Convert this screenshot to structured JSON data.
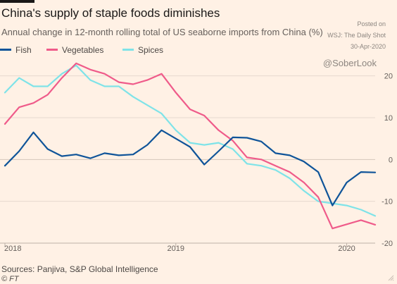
{
  "title": "China's supply of staple foods diminishes",
  "subtitle": "Annual change in 12-month rolling total of US seaborne imports from China (%)",
  "credit": {
    "line1": "Posted on",
    "line2": "WSJ: The Daily Shot",
    "line3": "30-Apr-2020"
  },
  "watermark": "@SoberLook",
  "source": "Sources: Panjiva, S&P Global Intelligence",
  "copyright": "© FT",
  "colors": {
    "background": "#fff1e5",
    "fish": "#0f5499",
    "vegetables": "#ef5b8a",
    "spices": "#7fe3e8",
    "grid": "#e6d9ce"
  },
  "chart_data": {
    "type": "line",
    "x": [
      "2018-01",
      "2018-02",
      "2018-03",
      "2018-04",
      "2018-05",
      "2018-06",
      "2018-07",
      "2018-08",
      "2018-09",
      "2018-10",
      "2018-11",
      "2018-12",
      "2019-01",
      "2019-02",
      "2019-03",
      "2019-04",
      "2019-05",
      "2019-06",
      "2019-07",
      "2019-08",
      "2019-09",
      "2019-10",
      "2019-11",
      "2019-12",
      "2020-01",
      "2020-02",
      "2020-03"
    ],
    "series": [
      {
        "name": "Fish",
        "color": "#0f5499",
        "values": [
          -1.5,
          2,
          6.5,
          2.5,
          0.8,
          1.2,
          0.3,
          1.5,
          1,
          1.2,
          3.5,
          7,
          5,
          3,
          -1.2,
          2,
          5.3,
          5.2,
          4.3,
          1.5,
          1,
          -0.5,
          -3,
          -11,
          -5.5,
          -3,
          -3.1
        ]
      },
      {
        "name": "Vegetables",
        "color": "#ef5b8a",
        "values": [
          8.5,
          12.5,
          13.5,
          15.5,
          19.5,
          23,
          21.5,
          20.5,
          18.5,
          18,
          19,
          20.5,
          16,
          12,
          10.5,
          7,
          4.5,
          0.5,
          0,
          -1.5,
          -3,
          -5.5,
          -9,
          -16.5,
          -15.5,
          -14.5,
          -15.6
        ]
      },
      {
        "name": "Spices",
        "color": "#7fe3e8",
        "values": [
          16,
          19.5,
          17.5,
          17.5,
          20.5,
          22.5,
          19,
          17.5,
          17.5,
          15,
          13,
          11,
          7,
          4,
          3.5,
          4,
          2.5,
          -1,
          -1.5,
          -2.5,
          -4.5,
          -7.5,
          -10,
          -10.5,
          -11,
          -12,
          -13.5
        ]
      }
    ],
    "y_ticks": [
      20,
      10,
      0,
      -10,
      -20
    ],
    "y_tick_labels": [
      "20",
      "10",
      "0",
      "-10",
      "-20"
    ],
    "x_ticks": [
      "2018-01",
      "2019-01",
      "2020-01"
    ],
    "x_tick_labels": [
      "2018",
      "2019",
      "2020"
    ],
    "ylim": [
      -20,
      25
    ],
    "xlim": [
      "2018-01",
      "2020-03"
    ],
    "grid": true,
    "legend": "top-left"
  }
}
